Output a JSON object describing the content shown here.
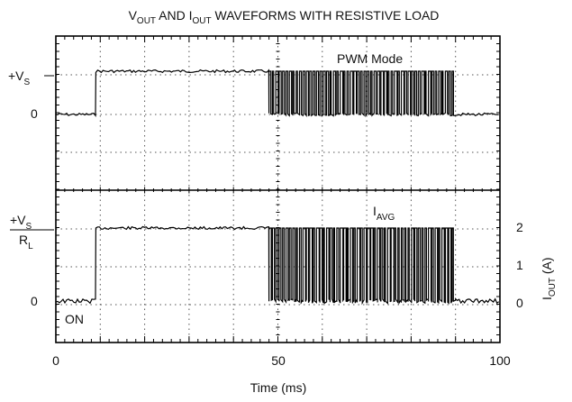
{
  "chart_data": {
    "type": "line",
    "title": {
      "prefix_v": "V",
      "sub_out_v": "OUT",
      "mid": " AND I",
      "sub_out_i": "OUT",
      "suffix": " WAVEFORMS WITH RESISTIVE LOAD"
    },
    "xlabel": "Time (ms)",
    "x_ticks": [
      "0",
      "50",
      "100"
    ],
    "xlim": [
      0,
      100
    ],
    "upper_panel": {
      "y_labels": {
        "high_main": "+V",
        "high_sub": "S",
        "low": "0"
      },
      "annotation": "PWM Mode"
    },
    "lower_panel": {
      "left_labels": {
        "high_num_main": "+V",
        "high_num_sub": "S",
        "high_den_main": "R",
        "high_den_sub": "L",
        "low": "0"
      },
      "right_axis": {
        "label_main": "I",
        "label_sub": "OUT",
        "label_unit": " (A)",
        "ticks": [
          "2",
          "1",
          "0"
        ],
        "ylim": [
          0,
          2
        ]
      },
      "annotation_main": "I",
      "annotation_sub": "AVG",
      "on_label": "ON"
    },
    "series": [
      {
        "segments": [
          {
            "x_start": 0,
            "x_end": 9,
            "level": "low"
          },
          {
            "x_start": 9,
            "x_end": 48,
            "level": "high"
          },
          {
            "x_start": 48,
            "x_end": 90,
            "level": "pwm"
          },
          {
            "x_start": 90,
            "x_end": 100,
            "level": "low"
          }
        ]
      }
    ],
    "pwm_pulse_count": 55,
    "grid": "dotted",
    "colors": {
      "trace": "#000000",
      "grid": "#555555",
      "frame": "#000000"
    }
  }
}
